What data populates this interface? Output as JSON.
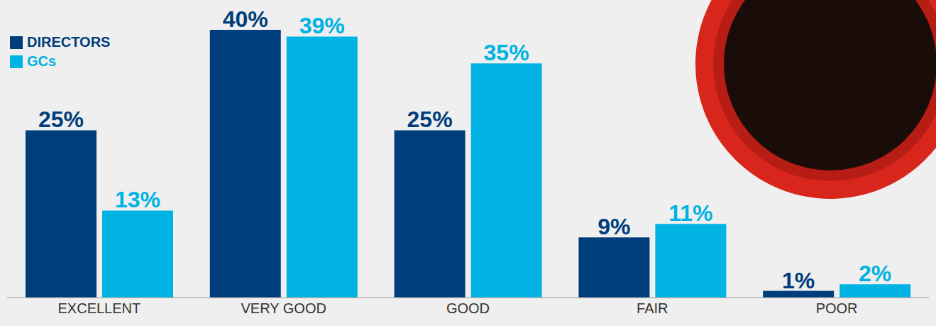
{
  "chart_data": {
    "type": "bar",
    "categories": [
      "EXCELLENT",
      "VERY GOOD",
      "GOOD",
      "FAIR",
      "POOR"
    ],
    "series": [
      {
        "name": "DIRECTORS",
        "color": "#003d7c",
        "values": [
          25,
          40,
          25,
          9,
          1
        ],
        "value_labels": [
          "25%",
          "40%",
          "25%",
          "9%",
          "1%"
        ]
      },
      {
        "name": "GCs",
        "color": "#00b3e3",
        "values": [
          13,
          39,
          35,
          11,
          2
        ],
        "value_labels": [
          "13%",
          "39%",
          "35%",
          "11%",
          "2%"
        ]
      }
    ],
    "ylim": [
      0,
      40
    ],
    "grid": false,
    "legend": "upper left",
    "data_labels": true,
    "tick_labels": "x"
  }
}
